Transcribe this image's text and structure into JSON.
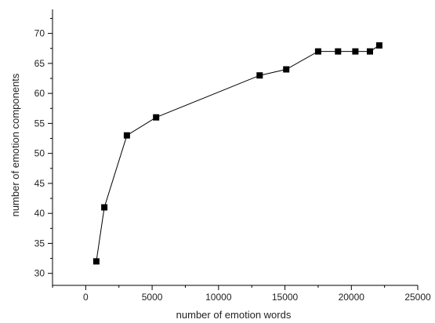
{
  "chart_data": {
    "type": "line",
    "title": "",
    "xlabel": "number of emotion words",
    "ylabel": "number of emotion components",
    "xlim": [
      -2500,
      25000
    ],
    "ylim": [
      28,
      74
    ],
    "x_ticks": [
      0,
      5000,
      10000,
      15000,
      20000,
      25000
    ],
    "x_tick_labels": [
      "0",
      "5000",
      "10000",
      "15000",
      "20000",
      "25000"
    ],
    "y_ticks": [
      30,
      35,
      40,
      45,
      50,
      55,
      60,
      65,
      70
    ],
    "y_tick_labels": [
      "30",
      "35",
      "40",
      "45",
      "50",
      "55",
      "60",
      "65",
      "70"
    ],
    "grid": false,
    "legend": "none",
    "marker": "square",
    "colors": {
      "line": "#000000",
      "marker": "#000000",
      "axis": "#000000"
    },
    "series": [
      {
        "x": [
          800,
          1400,
          3100,
          5300,
          13100,
          15100,
          17500,
          19000,
          20300,
          21400,
          22100
        ],
        "y": [
          32,
          41,
          53,
          56,
          63,
          64,
          67,
          67,
          67,
          67,
          68
        ]
      }
    ]
  }
}
